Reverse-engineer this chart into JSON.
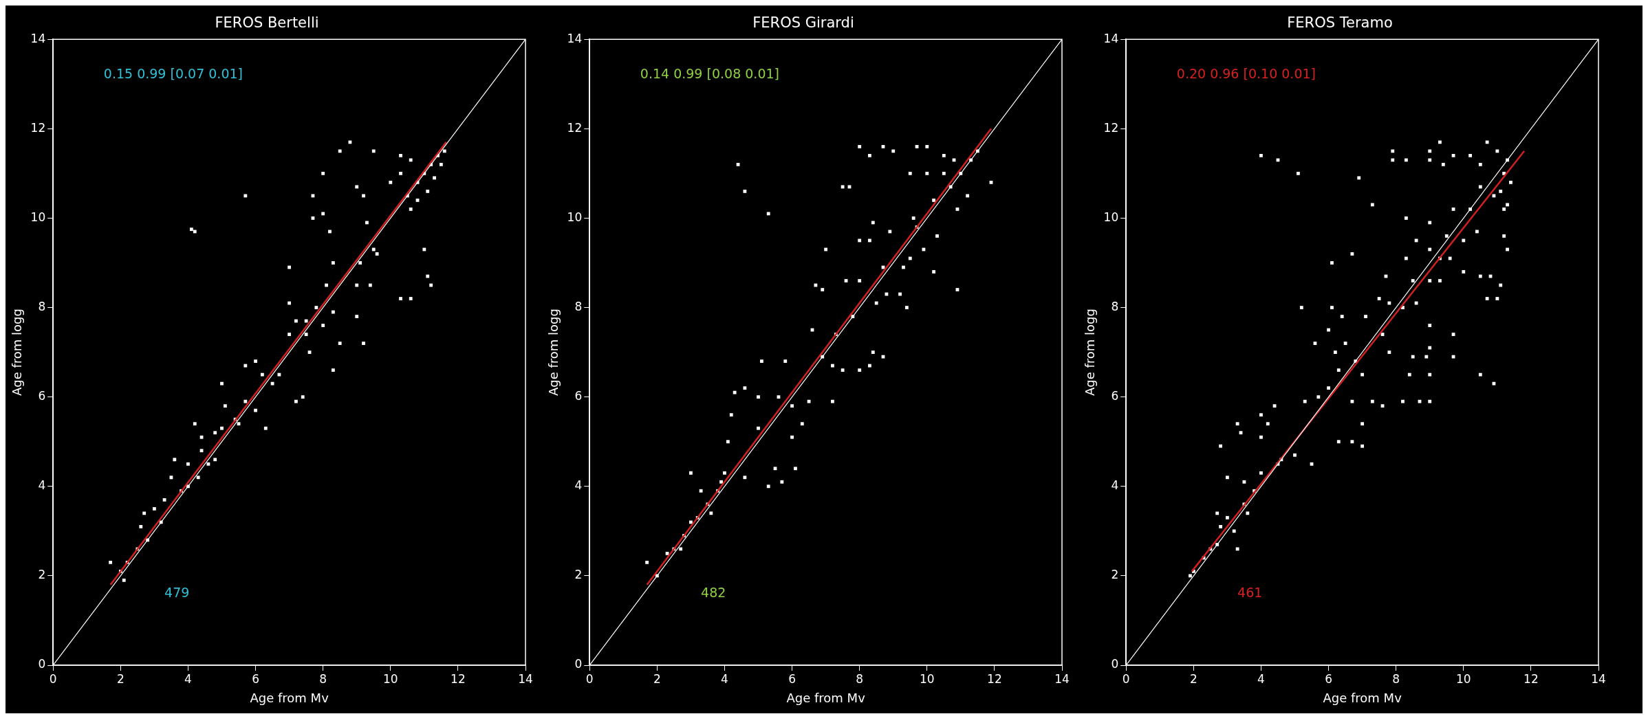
{
  "chart_data": [
    {
      "type": "scatter",
      "title": "FEROS Bertelli",
      "xlabel": "Age from Mv",
      "ylabel": "Age from logg",
      "xlim": [
        0,
        14
      ],
      "ylim": [
        0,
        14
      ],
      "xticks": [
        0,
        2,
        4,
        6,
        8,
        10,
        12,
        14
      ],
      "yticks": [
        0,
        2,
        4,
        6,
        8,
        10,
        12,
        14
      ],
      "grid": false,
      "legend": false,
      "annotations": [
        "0.15 0.99 [0.07 0.01]",
        "479"
      ],
      "series": [
        {
          "marker": "square",
          "color": "#ffffff",
          "x": [
            4.1,
            4.2,
            5.7,
            8.8,
            8.5,
            9.5,
            10.3,
            10.6,
            8.0,
            9.0,
            9.2,
            7.7,
            8.0,
            9.3,
            7.7,
            8.2,
            9.5,
            11.0,
            10.5,
            10.8,
            11.0,
            11.2,
            11.4,
            10.6,
            11.3,
            11.5,
            10.8,
            11.1,
            10.3,
            10.0,
            11.6,
            7.0,
            8.3,
            9.1,
            9.6,
            8.1,
            9.0,
            9.4,
            10.3,
            10.6,
            11.1,
            11.2,
            7.0,
            7.8,
            8.3,
            9.0,
            7.2,
            7.5,
            7.0,
            7.5,
            8.0,
            8.5,
            9.2,
            7.6,
            8.3,
            7.4,
            7.2,
            6.0,
            5.7,
            6.2,
            6.5,
            6.7,
            5.7,
            6.0,
            6.3,
            5.0,
            5.1,
            5.4,
            5.0,
            4.2,
            4.4,
            4.8,
            4.4,
            4.6,
            4.0,
            4.3,
            4.0,
            3.6,
            3.5,
            3.3,
            3.0,
            2.6,
            2.7,
            3.2,
            2.8,
            2.5,
            2.2,
            2.0,
            1.7,
            2.1,
            3.8,
            4.8,
            5.5
          ],
          "values": [
            9.75,
            9.7,
            10.5,
            11.7,
            11.5,
            11.5,
            11.4,
            11.3,
            11.0,
            10.7,
            10.5,
            10.5,
            10.1,
            9.9,
            10.0,
            9.7,
            9.3,
            9.3,
            10.5,
            10.8,
            11.0,
            11.2,
            11.4,
            10.2,
            10.9,
            11.2,
            10.4,
            10.6,
            11.0,
            10.8,
            11.5,
            8.9,
            9.0,
            9.0,
            9.2,
            8.5,
            8.5,
            8.5,
            8.2,
            8.2,
            8.7,
            8.5,
            8.1,
            8.0,
            7.9,
            7.8,
            7.7,
            7.7,
            7.4,
            7.4,
            7.6,
            7.2,
            7.2,
            7.0,
            6.6,
            6.0,
            5.9,
            6.8,
            6.7,
            6.5,
            6.3,
            6.5,
            5.9,
            5.7,
            5.3,
            6.3,
            5.8,
            5.5,
            5.3,
            5.4,
            5.1,
            5.2,
            4.8,
            4.5,
            4.5,
            4.2,
            4.0,
            4.6,
            4.2,
            3.7,
            3.5,
            3.1,
            3.4,
            3.2,
            2.8,
            2.6,
            2.3,
            2.1,
            2.3,
            1.9,
            3.9,
            4.6,
            5.4
          ]
        },
        {
          "type": "line",
          "color": "#d02020",
          "x": [
            1.7,
            11.65
          ],
          "values": [
            1.8,
            11.7
          ]
        },
        {
          "type": "line",
          "color": "#ffffff",
          "x": [
            0,
            14
          ],
          "values": [
            0,
            14
          ]
        }
      ]
    },
    {
      "type": "scatter",
      "title": "FEROS Girardi",
      "xlabel": "Age from Mv",
      "ylabel": "Age from logg",
      "xlim": [
        0,
        14
      ],
      "ylim": [
        0,
        14
      ],
      "xticks": [
        0,
        2,
        4,
        6,
        8,
        10,
        12,
        14
      ],
      "yticks": [
        0,
        2,
        4,
        6,
        8,
        10,
        12,
        14
      ],
      "grid": false,
      "legend": false,
      "annotations": [
        "0.14 0.99 [0.08 0.01]",
        "482"
      ],
      "series": [
        {
          "marker": "square",
          "color": "#ffffff",
          "x": [
            4.4,
            4.6,
            5.3,
            7.5,
            7.7,
            8.0,
            8.3,
            8.7,
            9.0,
            9.7,
            10.0,
            10.5,
            10.8,
            9.5,
            10.0,
            10.5,
            11.0,
            11.3,
            11.5,
            10.7,
            11.2,
            10.9,
            10.2,
            11.9,
            9.6,
            9.7,
            8.4,
            8.0,
            8.3,
            10.3,
            8.9,
            7.0,
            9.5,
            9.9,
            9.3,
            10.2,
            10.9,
            8.7,
            8.0,
            7.6,
            6.7,
            6.9,
            8.8,
            8.5,
            9.2,
            9.4,
            7.8,
            7.3,
            6.6,
            6.9,
            7.2,
            7.5,
            8.0,
            8.3,
            8.4,
            8.7,
            5.1,
            5.8,
            4.3,
            4.6,
            5.0,
            5.6,
            6.0,
            6.5,
            7.2,
            4.2,
            5.0,
            6.3,
            6.0,
            4.1,
            5.5,
            6.1,
            4.0,
            5.7,
            5.3,
            4.6,
            3.8,
            3.5,
            3.9,
            3.0,
            3.3,
            3.6,
            3.0,
            2.8,
            2.5,
            2.3,
            1.7,
            2.0,
            2.7,
            3.2
          ],
          "values": [
            11.2,
            10.6,
            10.1,
            10.7,
            10.7,
            11.6,
            11.4,
            11.6,
            11.5,
            11.6,
            11.6,
            11.4,
            11.3,
            11.0,
            11.0,
            11.0,
            11.0,
            11.3,
            11.5,
            10.7,
            10.5,
            10.2,
            10.4,
            10.8,
            10.0,
            9.8,
            9.9,
            9.5,
            9.5,
            9.6,
            9.7,
            9.3,
            9.1,
            9.3,
            8.9,
            8.8,
            8.4,
            8.9,
            8.6,
            8.6,
            8.5,
            8.4,
            8.3,
            8.1,
            8.3,
            8.0,
            7.8,
            7.4,
            7.5,
            6.9,
            6.7,
            6.6,
            6.6,
            6.7,
            7.0,
            6.9,
            6.8,
            6.8,
            6.1,
            6.2,
            6.0,
            6.0,
            5.8,
            5.9,
            5.9,
            5.6,
            5.3,
            5.4,
            5.1,
            5.0,
            4.4,
            4.4,
            4.3,
            4.1,
            4.0,
            4.2,
            3.9,
            3.6,
            4.1,
            4.3,
            3.9,
            3.4,
            3.2,
            2.9,
            2.6,
            2.5,
            2.3,
            2.0,
            2.6,
            3.3
          ]
        },
        {
          "type": "line",
          "color": "#d02020",
          "x": [
            1.7,
            11.9
          ],
          "values": [
            1.8,
            12.0
          ]
        },
        {
          "type": "line",
          "color": "#ffffff",
          "x": [
            0,
            14
          ],
          "values": [
            0,
            14
          ]
        }
      ]
    },
    {
      "type": "scatter",
      "title": "FEROS Teramo",
      "xlabel": "Age from Mv",
      "ylabel": "Age from logg",
      "xlim": [
        0,
        14
      ],
      "ylim": [
        0,
        14
      ],
      "xticks": [
        0,
        2,
        4,
        6,
        8,
        10,
        12,
        14
      ],
      "yticks": [
        0,
        2,
        4,
        6,
        8,
        10,
        12,
        14
      ],
      "grid": false,
      "legend": false,
      "annotations": [
        "0.20 0.96 [0.10 0.01]",
        "461"
      ],
      "series": [
        {
          "marker": "square",
          "color": "#ffffff",
          "x": [
            4.0,
            4.5,
            5.1,
            6.9,
            7.3,
            7.9,
            7.9,
            8.3,
            9.0,
            9.3,
            9.0,
            9.4,
            9.7,
            10.2,
            10.7,
            10.5,
            11.0,
            11.3,
            11.2,
            11.1,
            11.3,
            10.9,
            11.4,
            11.2,
            10.5,
            10.2,
            9.7,
            8.3,
            9.0,
            10.4,
            10.0,
            11.2,
            11.3,
            9.5,
            8.6,
            9.0,
            9.3,
            8.3,
            6.1,
            6.7,
            9.6,
            7.7,
            8.5,
            9.0,
            9.3,
            10.0,
            10.5,
            10.8,
            11.1,
            11.0,
            10.7,
            6.4,
            5.2,
            6.1,
            7.5,
            7.8,
            8.2,
            8.6,
            7.1,
            9.0,
            6.0,
            5.6,
            6.5,
            7.6,
            9.7,
            6.2,
            7.8,
            8.5,
            8.9,
            9.0,
            9.7,
            6.3,
            6.8,
            7.0,
            8.4,
            9.0,
            10.5,
            10.9,
            4.4,
            5.3,
            5.7,
            6.0,
            6.7,
            7.3,
            8.2,
            8.7,
            9.0,
            7.6,
            3.3,
            4.0,
            4.2,
            7.0,
            3.4,
            4.0,
            6.3,
            6.7,
            7.0,
            2.8,
            4.5,
            5.0,
            5.5,
            3.0,
            3.5,
            4.0,
            4.6,
            3.8,
            2.7,
            3.0,
            3.5,
            3.6,
            3.2,
            2.8,
            2.7,
            3.3,
            2.5,
            2.3,
            2.0,
            1.9
          ],
          "values": [
            11.4,
            11.3,
            11.0,
            10.9,
            10.3,
            11.5,
            11.3,
            11.3,
            11.5,
            11.7,
            11.3,
            11.2,
            11.4,
            11.4,
            11.7,
            11.2,
            11.5,
            11.3,
            11.0,
            10.6,
            10.3,
            10.5,
            10.8,
            10.2,
            10.7,
            10.2,
            10.2,
            10.0,
            9.9,
            9.7,
            9.5,
            9.6,
            9.3,
            9.6,
            9.5,
            9.3,
            9.1,
            9.1,
            9.0,
            9.2,
            9.1,
            8.7,
            8.6,
            8.6,
            8.6,
            8.8,
            8.7,
            8.7,
            8.5,
            8.2,
            8.2,
            7.8,
            8.0,
            8.0,
            8.2,
            8.1,
            8.0,
            8.1,
            7.8,
            7.6,
            7.5,
            7.2,
            7.2,
            7.4,
            7.4,
            7.0,
            7.0,
            6.9,
            6.9,
            7.1,
            6.9,
            6.6,
            6.8,
            6.5,
            6.5,
            6.5,
            6.5,
            6.3,
            5.8,
            5.9,
            6.0,
            6.2,
            5.9,
            5.9,
            5.9,
            5.9,
            5.9,
            5.8,
            5.4,
            5.6,
            5.4,
            5.4,
            5.2,
            5.1,
            5.0,
            5.0,
            4.9,
            4.9,
            4.5,
            4.7,
            4.5,
            4.2,
            4.1,
            4.3,
            4.6,
            3.9,
            3.4,
            3.3,
            3.6,
            3.4,
            3.0,
            3.1,
            2.7,
            2.6,
            2.6,
            2.4,
            2.1,
            2.0
          ]
        },
        {
          "type": "line",
          "color": "#d02020",
          "x": [
            1.95,
            11.8
          ],
          "values": [
            2.1,
            11.5
          ]
        },
        {
          "type": "line",
          "color": "#ffffff",
          "x": [
            0,
            14
          ],
          "values": [
            0,
            14
          ]
        }
      ]
    }
  ]
}
